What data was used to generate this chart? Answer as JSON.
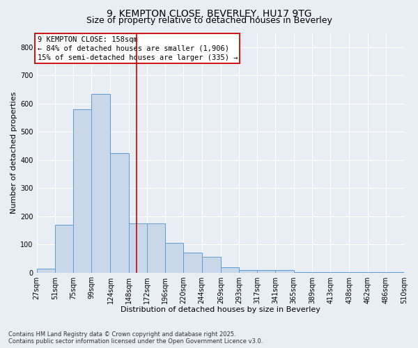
{
  "title1": "9, KEMPTON CLOSE, BEVERLEY, HU17 9TG",
  "title2": "Size of property relative to detached houses in Beverley",
  "xlabel": "Distribution of detached houses by size in Beverley",
  "ylabel": "Number of detached properties",
  "bin_edges": [
    27,
    51,
    75,
    99,
    124,
    148,
    172,
    196,
    220,
    244,
    269,
    293,
    317,
    341,
    365,
    389,
    413,
    438,
    462,
    486,
    510
  ],
  "bar_heights": [
    15,
    170,
    580,
    635,
    425,
    175,
    175,
    105,
    70,
    55,
    20,
    10,
    10,
    8,
    2,
    2,
    2,
    1,
    1,
    1
  ],
  "bar_color": "#c8d8e8",
  "bar_edge_color": "#5b9bd5",
  "property_size": 158,
  "property_line_color": "#cc0000",
  "annotation_line1": "9 KEMPTON CLOSE: 158sqm",
  "annotation_line2": "← 84% of detached houses are smaller (1,906)",
  "annotation_line3": "15% of semi-detached houses are larger (335) →",
  "annotation_box_color": "#ffffff",
  "annotation_border_color": "#cc0000",
  "ylim": [
    0,
    850
  ],
  "yticks": [
    0,
    100,
    200,
    300,
    400,
    500,
    600,
    700,
    800
  ],
  "background_color": "#e8eef4",
  "plot_bg_color": "#e8eef4",
  "footer1": "Contains HM Land Registry data © Crown copyright and database right 2025.",
  "footer2": "Contains public sector information licensed under the Open Government Licence v3.0.",
  "grid_color": "#ffffff",
  "title_fontsize": 10,
  "subtitle_fontsize": 9,
  "axis_label_fontsize": 8,
  "tick_fontsize": 7,
  "annotation_fontsize": 7.5
}
